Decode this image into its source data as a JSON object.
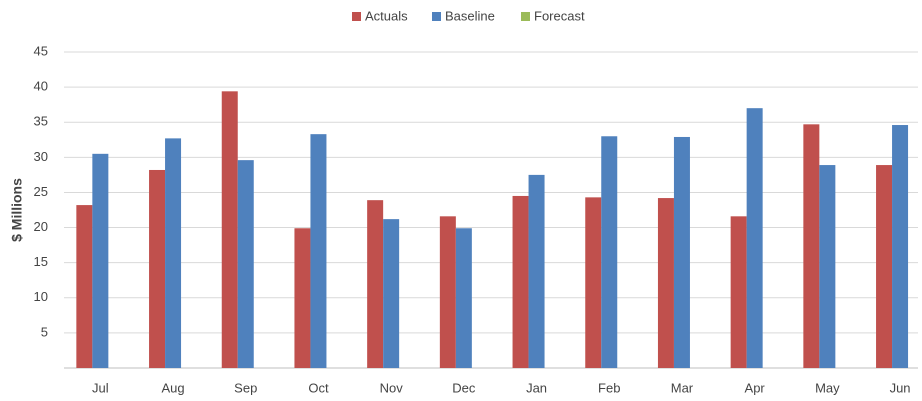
{
  "chart_data": {
    "type": "bar",
    "y_label": "$ Millions",
    "categories": [
      "Jul",
      "Aug",
      "Sep",
      "Oct",
      "Nov",
      "Dec",
      "Jan",
      "Feb",
      "Mar",
      "Apr",
      "May",
      "Jun"
    ],
    "series": [
      {
        "name": "Actuals",
        "color": "#c0504d",
        "values": [
          23.2,
          28.2,
          39.4,
          19.9,
          23.9,
          21.6,
          24.5,
          24.3,
          24.2,
          21.6,
          34.7,
          28.9
        ]
      },
      {
        "name": "Baseline",
        "color": "#4f81bd",
        "values": [
          30.5,
          32.7,
          29.6,
          33.3,
          21.2,
          19.9,
          27.5,
          33.0,
          32.9,
          37.0,
          28.9,
          34.6
        ]
      },
      {
        "name": "Forecast",
        "color": "#9bbb59",
        "values": [
          null,
          null,
          null,
          null,
          null,
          null,
          null,
          null,
          null,
          null,
          null,
          null
        ]
      }
    ],
    "ylim": [
      0,
      45
    ],
    "yticks": [
      5,
      10,
      15,
      20,
      25,
      30,
      35,
      40,
      45
    ],
    "grid": true,
    "legend": "top"
  }
}
